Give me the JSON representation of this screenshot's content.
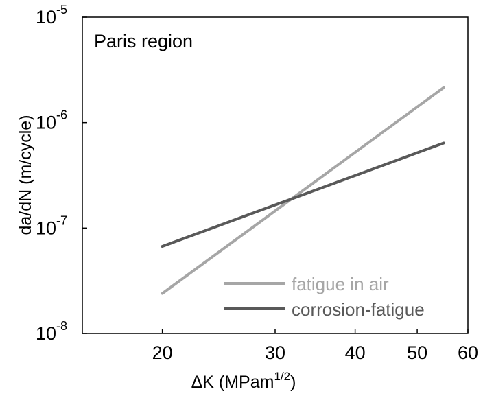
{
  "chart_data": {
    "type": "line",
    "x_scale": "log",
    "y_scale": "log",
    "xlim": [
      15,
      60
    ],
    "ylim": [
      1e-08,
      1e-05
    ],
    "x_ticks": [
      20,
      30,
      40,
      50,
      60
    ],
    "x_tick_labels": [
      "20",
      "30",
      "40",
      "50",
      "60"
    ],
    "y_ticks": [
      {
        "value": 1e-08,
        "base": "10",
        "exp": "-8"
      },
      {
        "value": 1e-07,
        "base": "10",
        "exp": "-7"
      },
      {
        "value": 1e-06,
        "base": "10",
        "exp": "-6"
      },
      {
        "value": 1e-05,
        "base": "10",
        "exp": "-5"
      }
    ],
    "xlabel": {
      "main": "ΔK (MPam",
      "sup": "1/2",
      "close": ")"
    },
    "ylabel": "da/dN (m/cycle)",
    "annotation": "Paris region",
    "grid": false,
    "legend_position": "bottom-right",
    "series": [
      {
        "name": "fatigue in air",
        "color": "#a6a6a6",
        "x": [
          20,
          55
        ],
        "y": [
          2.4e-08,
          2.15e-06
        ]
      },
      {
        "name": "corrosion-fatigue",
        "color": "#595959",
        "x": [
          20,
          55
        ],
        "y": [
          6.7e-08,
          6.4e-07
        ]
      }
    ]
  }
}
